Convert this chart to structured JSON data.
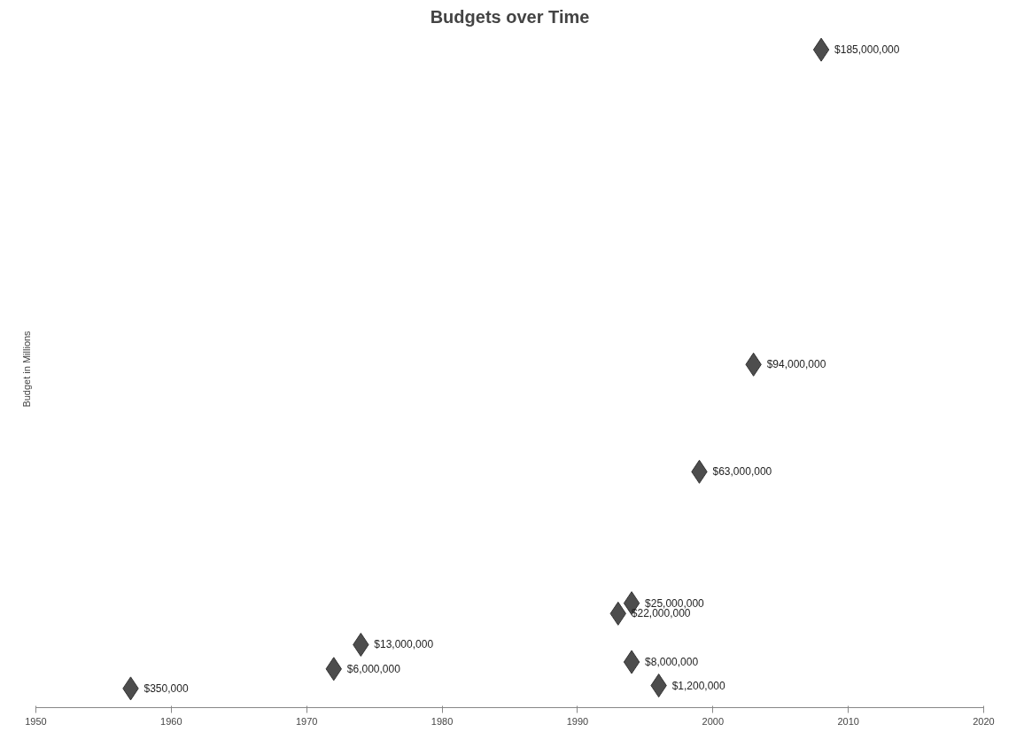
{
  "chart_data": {
    "type": "scatter",
    "title": "Budgets over Time",
    "ylabel": "Budget in Millions",
    "x": [
      1957,
      1972,
      1974,
      1993,
      1994,
      1994,
      1996,
      1999,
      2003,
      2008
    ],
    "values": [
      350000,
      6000000,
      13000000,
      22000000,
      25000000,
      8000000,
      1200000,
      63000000,
      94000000,
      185000000
    ],
    "value_labels": [
      "$350,000",
      "$6,000,000",
      "$13,000,000",
      "$22,000,000",
      "$25,000,000",
      "$8,000,000",
      "$1,200,000",
      "$63,000,000",
      "$94,000,000",
      "$185,000,000"
    ],
    "color": "#4d4d4d",
    "marker": "diamond",
    "grid": false,
    "tick_labels": "x",
    "xlim": [
      1950,
      2020
    ],
    "xticks": [
      1950,
      1960,
      1970,
      1980,
      1990,
      2000,
      2010,
      2020
    ]
  }
}
